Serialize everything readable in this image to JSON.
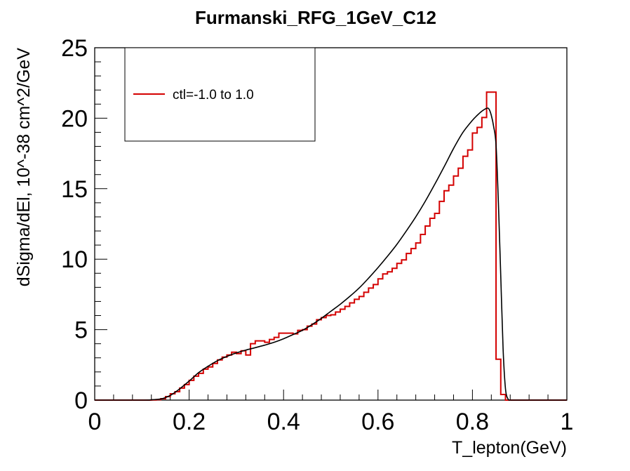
{
  "chart_data": {
    "type": "line",
    "title": "Furmanski_RFG_1GeV_C12",
    "xlabel": "T_lepton(GeV)",
    "ylabel": "dSigma/dEl, 10^-38 cm^2/GeV",
    "xlim": [
      0,
      1
    ],
    "ylim": [
      0,
      25
    ],
    "x_ticks": [
      "0",
      "0.2",
      "0.4",
      "0.6",
      "0.8",
      "1"
    ],
    "y_ticks": [
      "0",
      "5",
      "10",
      "15",
      "20",
      "25"
    ],
    "grid": false,
    "legend": {
      "placement": "top-left",
      "entries": [
        "ctl=-1.0 to 1.0"
      ]
    },
    "series": [
      {
        "name": "ctl=-1.0 to 1.0",
        "style": "histogram",
        "color": "#d40000",
        "bin_width": 0.01,
        "bin_edges_start": 0.0,
        "values": [
          0,
          0,
          0,
          0,
          0,
          0,
          0,
          0,
          0,
          0,
          0,
          0,
          0.01,
          0.03,
          0.1,
          0.25,
          0.45,
          0.6,
          0.85,
          1.1,
          1.4,
          1.7,
          1.9,
          2.2,
          2.35,
          2.6,
          2.85,
          3.05,
          3.2,
          3.4,
          3.3,
          3.5,
          3.2,
          4.0,
          4.2,
          4.2,
          4.1,
          4.3,
          4.45,
          4.75,
          4.75,
          4.75,
          4.7,
          4.95,
          5.0,
          5.25,
          5.4,
          5.7,
          5.85,
          6.0,
          6.05,
          6.25,
          6.45,
          6.65,
          6.9,
          7.15,
          7.35,
          7.65,
          7.95,
          8.2,
          8.6,
          8.95,
          9.1,
          9.35,
          9.7,
          9.95,
          10.4,
          10.75,
          11.15,
          11.75,
          12.35,
          12.9,
          13.25,
          14.1,
          14.85,
          15.25,
          15.9,
          16.45,
          17.3,
          17.75,
          18.95,
          19.35,
          20.05,
          21.85,
          21.85,
          2.9,
          0.4,
          0,
          0,
          0,
          0,
          0,
          0,
          0,
          0,
          0,
          0,
          0,
          0,
          0
        ]
      },
      {
        "name": "",
        "style": "smooth",
        "color": "#000000",
        "x": [
          0,
          0.1,
          0.12,
          0.14,
          0.15,
          0.16,
          0.17,
          0.18,
          0.2,
          0.22,
          0.24,
          0.26,
          0.28,
          0.3,
          0.32,
          0.34,
          0.36,
          0.38,
          0.4,
          0.42,
          0.44,
          0.46,
          0.48,
          0.5,
          0.52,
          0.54,
          0.56,
          0.58,
          0.6,
          0.62,
          0.64,
          0.66,
          0.68,
          0.7,
          0.72,
          0.74,
          0.76,
          0.78,
          0.8,
          0.81,
          0.82,
          0.83,
          0.835,
          0.84,
          0.845,
          0.85,
          0.855,
          0.86,
          0.865,
          0.87,
          0.875,
          0.88,
          0.9,
          1.0
        ],
        "y": [
          0,
          0,
          0.02,
          0.08,
          0.18,
          0.33,
          0.55,
          0.8,
          1.35,
          1.95,
          2.4,
          2.8,
          3.1,
          3.35,
          3.55,
          3.72,
          3.9,
          4.1,
          4.35,
          4.65,
          4.95,
          5.35,
          5.8,
          6.3,
          6.8,
          7.35,
          7.95,
          8.65,
          9.4,
          10.2,
          11.05,
          12.0,
          13.0,
          14.1,
          15.3,
          16.55,
          17.85,
          19.0,
          19.85,
          20.2,
          20.5,
          20.7,
          20.65,
          20.2,
          19.4,
          18.1,
          14.0,
          8.8,
          3.6,
          0.8,
          0.1,
          0,
          0,
          0
        ]
      }
    ]
  }
}
